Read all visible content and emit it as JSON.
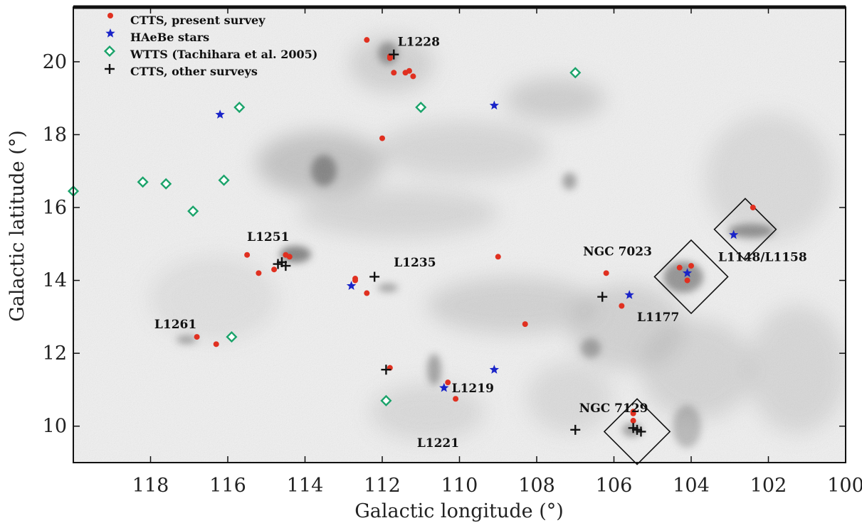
{
  "chart_data": {
    "type": "scatter",
    "xlabel": "Galactic longitude (°)",
    "ylabel": "Galactic latitude (°)",
    "xlim": [
      120,
      100
    ],
    "ylim": [
      9,
      21.5
    ],
    "x_ticks": [
      "118",
      "116",
      "114",
      "112",
      "110",
      "108",
      "106",
      "104",
      "102",
      "100"
    ],
    "x_tick_values": [
      118,
      116,
      114,
      112,
      110,
      108,
      106,
      104,
      102,
      100
    ],
    "y_ticks": [
      "10",
      "12",
      "14",
      "16",
      "18",
      "20"
    ],
    "y_tick_values": [
      10,
      12,
      14,
      16,
      18,
      20
    ],
    "background": "grayscale extinction map",
    "legend_position": "top-left",
    "colors": {
      "ctts": "#e03020",
      "haebe": "#1a24c8",
      "wtts": "#1aa36a",
      "other": "#111111"
    },
    "series": [
      {
        "name": "CTTS, present survey",
        "marker": "dot",
        "x": [
          112.4,
          111.8,
          111.7,
          111.8,
          111.3,
          111.2,
          111.4,
          112.0,
          114.5,
          114.4,
          115.5,
          115.2,
          114.8,
          112.7,
          112.7,
          112.4,
          109.0,
          106.2,
          105.8,
          104.3,
          104.0,
          104.1,
          102.4,
          108.3,
          116.8,
          116.3,
          111.8,
          110.3,
          110.1,
          105.5,
          105.5,
          105.5
        ],
        "y": [
          20.6,
          20.1,
          19.7,
          20.15,
          19.75,
          19.6,
          19.7,
          17.9,
          14.7,
          14.65,
          14.7,
          14.2,
          14.3,
          14.05,
          14.0,
          13.65,
          14.65,
          14.2,
          13.3,
          14.35,
          14.4,
          14.0,
          16.0,
          12.8,
          12.45,
          12.25,
          11.6,
          11.2,
          10.75,
          10.4,
          10.35,
          10.15
        ]
      },
      {
        "name": "HAeBe stars",
        "marker": "star",
        "x": [
          116.2,
          109.1,
          112.8,
          105.6,
          104.1,
          102.9,
          109.1,
          110.4
        ],
        "y": [
          18.55,
          18.8,
          13.85,
          13.6,
          14.2,
          15.25,
          11.55,
          11.05
        ]
      },
      {
        "name": "WTTS (Tachihara et al. 2005)",
        "marker": "diamond",
        "x": [
          115.7,
          111.0,
          107.0,
          120.0,
          118.2,
          117.6,
          116.1,
          116.9,
          115.9,
          111.9
        ],
        "y": [
          18.75,
          18.75,
          19.7,
          16.45,
          16.7,
          16.65,
          16.75,
          15.9,
          12.45,
          10.7
        ]
      },
      {
        "name": "CTTS, other surveys",
        "marker": "plus",
        "x": [
          111.7,
          114.6,
          114.5,
          114.7,
          112.2,
          106.3,
          111.9,
          107.0,
          105.4,
          105.3,
          105.5
        ],
        "y": [
          20.2,
          14.5,
          14.4,
          14.45,
          14.1,
          13.55,
          11.55,
          9.9,
          9.9,
          9.85,
          9.95
        ]
      }
    ],
    "annotations": [
      {
        "text": "L1228",
        "x": 111.6,
        "y": 20.55
      },
      {
        "text": "L1251",
        "x": 115.5,
        "y": 15.2
      },
      {
        "text": "L1235",
        "x": 111.7,
        "y": 14.5
      },
      {
        "text": "L1261",
        "x": 117.9,
        "y": 12.8
      },
      {
        "text": "L1219",
        "x": 110.2,
        "y": 11.05
      },
      {
        "text": "L1221",
        "x": 111.1,
        "y": 9.55
      },
      {
        "text": "NGC 7023",
        "x": 106.8,
        "y": 14.8
      },
      {
        "text": "L1177",
        "x": 105.4,
        "y": 13.0
      },
      {
        "text": "L1148/L1158",
        "x": 103.3,
        "y": 14.65
      },
      {
        "text": "NGC 7129",
        "x": 106.9,
        "y": 10.5
      }
    ],
    "boxes": [
      {
        "center_x": 104.0,
        "center_y": 14.1,
        "half_size_deg": 0.95
      },
      {
        "center_x": 102.6,
        "center_y": 15.4,
        "half_size_deg": 0.8
      },
      {
        "center_x": 105.4,
        "center_y": 9.85,
        "half_size_deg": 0.85
      }
    ]
  }
}
